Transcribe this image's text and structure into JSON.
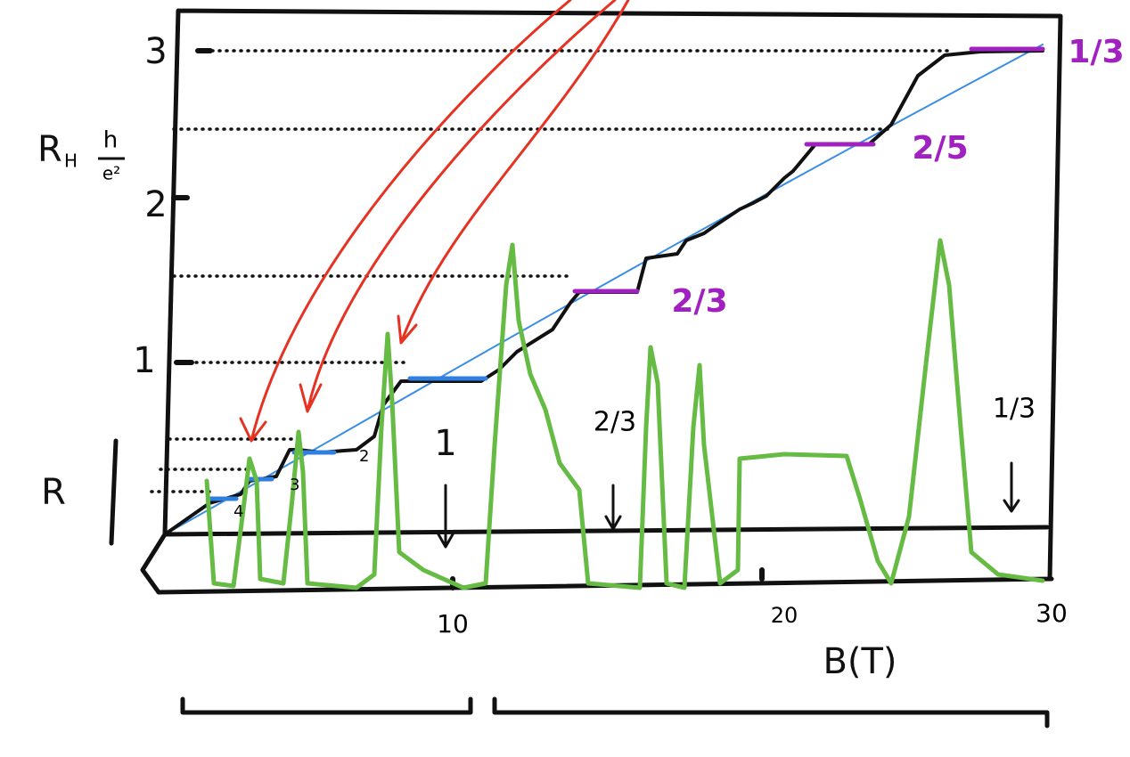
{
  "axes": {
    "y_label": "R",
    "y_label_sub": "H",
    "y_unit_num": "h",
    "y_unit_den": "e²",
    "r_label": "R",
    "x_label": "B(T)",
    "y_ticks": [
      "1",
      "2",
      "3"
    ],
    "x_ticks": [
      "10",
      "20",
      "30"
    ]
  },
  "plateau_labels": {
    "top": [
      "1/3",
      "2/5",
      "2/3"
    ],
    "integer": [
      "4",
      "3",
      "2"
    ]
  },
  "resistance_labels": [
    "1",
    "2/3",
    "1/3"
  ]
}
